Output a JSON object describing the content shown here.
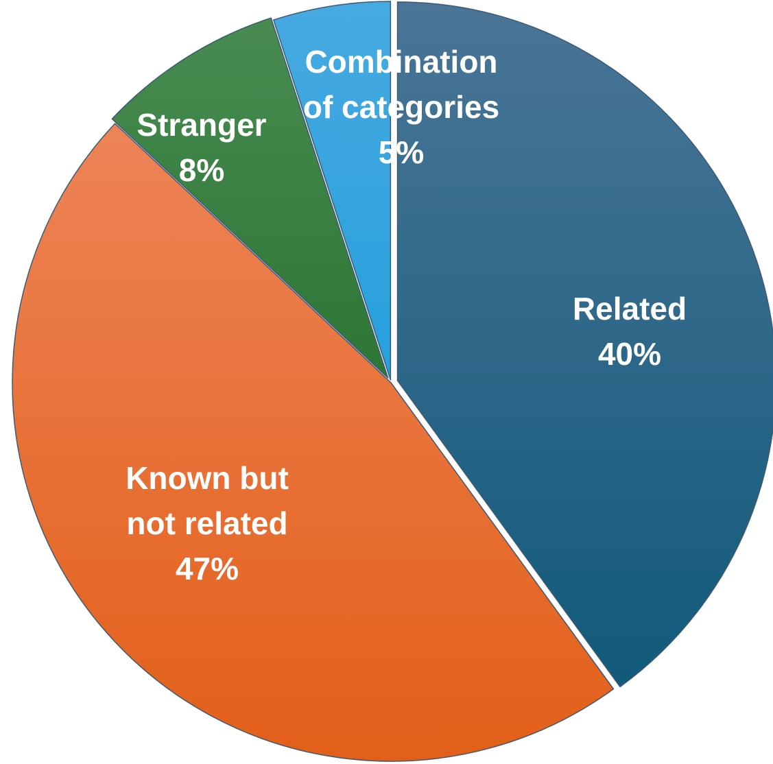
{
  "chart_data": {
    "type": "pie",
    "start_angle_deg": 0,
    "direction": "clockwise",
    "slices": [
      {
        "key": "related",
        "label_lines": [
          "Related"
        ],
        "value": 40,
        "value_label": "40%",
        "colors": [
          "#4a7597",
          "#0b5777"
        ],
        "explode": 10
      },
      {
        "key": "known-but-not-related",
        "label_lines": [
          "Known but",
          "not related"
        ],
        "value": 47,
        "value_label": "47%",
        "colors": [
          "#ef8b63",
          "#e35f19"
        ],
        "explode": 0
      },
      {
        "key": "stranger",
        "label_lines": [
          "Stranger"
        ],
        "value": 8,
        "value_label": "8%",
        "colors": [
          "#4a8c52",
          "#0e6018"
        ],
        "explode": 8
      },
      {
        "key": "combination-of-categories",
        "label_lines": [
          "Combination",
          "of categories"
        ],
        "value": 5,
        "value_label": "5%",
        "colors": [
          "#47a9e1",
          "#0497d7"
        ],
        "explode": 4
      }
    ]
  }
}
